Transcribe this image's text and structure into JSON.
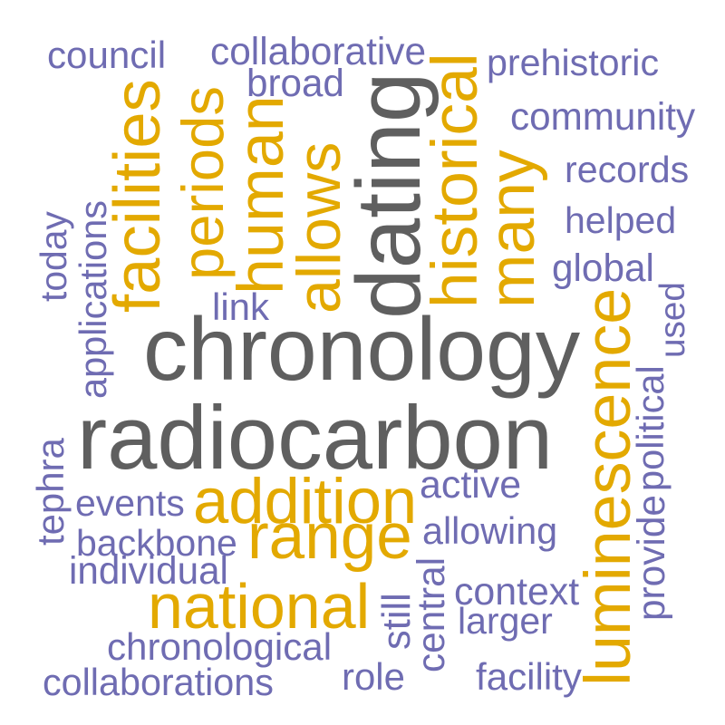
{
  "colors": {
    "gray": "#5f5f5f",
    "gold": "#e3a900",
    "purple": "#6f6cb2"
  },
  "words": [
    {
      "text": "chronology",
      "color": "gray",
      "rotated": false
    },
    {
      "text": "radiocarbon",
      "color": "gray",
      "rotated": false
    },
    {
      "text": "dating",
      "color": "gray",
      "rotated": true
    },
    {
      "text": "national",
      "color": "gold",
      "rotated": false
    },
    {
      "text": "range",
      "color": "gold",
      "rotated": false
    },
    {
      "text": "addition",
      "color": "gold",
      "rotated": false
    },
    {
      "text": "luminescence",
      "color": "gold",
      "rotated": true
    },
    {
      "text": "facilities",
      "color": "gold",
      "rotated": true
    },
    {
      "text": "periods",
      "color": "gold",
      "rotated": true
    },
    {
      "text": "human",
      "color": "gold",
      "rotated": true
    },
    {
      "text": "allows",
      "color": "gold",
      "rotated": true
    },
    {
      "text": "historical",
      "color": "gold",
      "rotated": true
    },
    {
      "text": "many",
      "color": "gold",
      "rotated": true
    },
    {
      "text": "council",
      "color": "purple",
      "rotated": false
    },
    {
      "text": "collaborative",
      "color": "purple",
      "rotated": false
    },
    {
      "text": "broad",
      "color": "purple",
      "rotated": false
    },
    {
      "text": "prehistoric",
      "color": "purple",
      "rotated": false
    },
    {
      "text": "community",
      "color": "purple",
      "rotated": false
    },
    {
      "text": "records",
      "color": "purple",
      "rotated": false
    },
    {
      "text": "helped",
      "color": "purple",
      "rotated": false
    },
    {
      "text": "global",
      "color": "purple",
      "rotated": false
    },
    {
      "text": "used",
      "color": "purple",
      "rotated": true
    },
    {
      "text": "political",
      "color": "purple",
      "rotated": true
    },
    {
      "text": "provide",
      "color": "purple",
      "rotated": true
    },
    {
      "text": "link",
      "color": "purple",
      "rotated": false
    },
    {
      "text": "today",
      "color": "purple",
      "rotated": true
    },
    {
      "text": "applications",
      "color": "purple",
      "rotated": true
    },
    {
      "text": "tephra",
      "color": "purple",
      "rotated": true
    },
    {
      "text": "events",
      "color": "purple",
      "rotated": false
    },
    {
      "text": "backbone",
      "color": "purple",
      "rotated": false
    },
    {
      "text": "individual",
      "color": "purple",
      "rotated": false
    },
    {
      "text": "active",
      "color": "purple",
      "rotated": false
    },
    {
      "text": "allowing",
      "color": "purple",
      "rotated": false
    },
    {
      "text": "context",
      "color": "purple",
      "rotated": false
    },
    {
      "text": "larger",
      "color": "purple",
      "rotated": false
    },
    {
      "text": "still",
      "color": "purple",
      "rotated": true
    },
    {
      "text": "central",
      "color": "purple",
      "rotated": true
    },
    {
      "text": "chronological",
      "color": "purple",
      "rotated": false
    },
    {
      "text": "collaborations",
      "color": "purple",
      "rotated": false
    },
    {
      "text": "role",
      "color": "purple",
      "rotated": false
    },
    {
      "text": "facility",
      "color": "purple",
      "rotated": false
    }
  ]
}
